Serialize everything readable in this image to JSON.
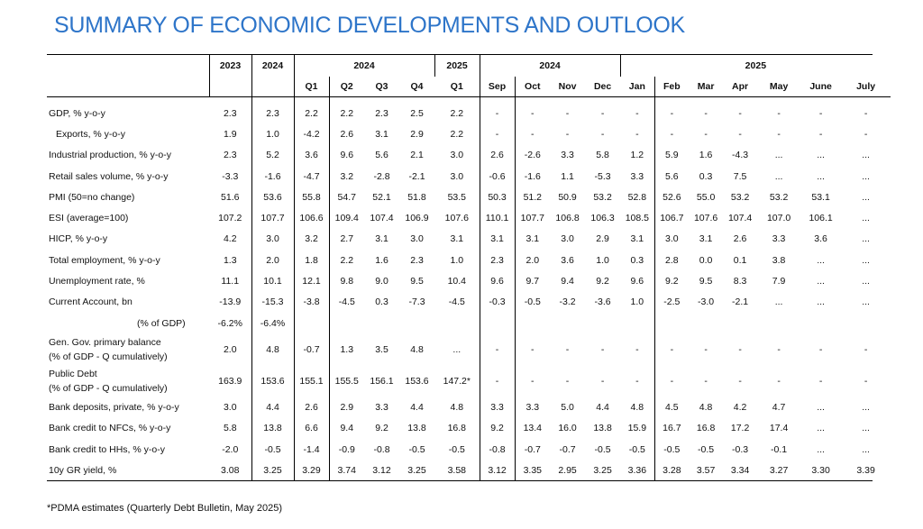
{
  "title": "SUMMARY OF ECONOMIC DEVELOPMENTS AND OUTLOOK",
  "header": {
    "year_2023": "2023",
    "year_2024": "2024",
    "group_2024_quarters": "2024",
    "group_2025_quarter": "2025",
    "group_2024_months": "2024",
    "group_2025_months": "2025",
    "subcols": [
      "Q1",
      "Q2",
      "Q3",
      "Q4",
      "Q1",
      "Sep",
      "Oct",
      "Nov",
      "Dec",
      "Jan",
      "Feb",
      "Mar",
      "Apr",
      "May",
      "June",
      "July"
    ]
  },
  "rows": [
    {
      "label": "GDP, % y-o-y",
      "values": [
        "2.3",
        "2.3",
        "2.2",
        "2.2",
        "2.3",
        "2.5",
        "2.2",
        "-",
        "-",
        "-",
        "-",
        "-",
        "-",
        "-",
        "-",
        "-",
        "-",
        "-"
      ]
    },
    {
      "label": "Exports, % y-o-y",
      "indent": true,
      "values": [
        "1.9",
        "1.0",
        "-4.2",
        "2.6",
        "3.1",
        "2.9",
        "2.2",
        "-",
        "-",
        "-",
        "-",
        "-",
        "-",
        "-",
        "-",
        "-",
        "-",
        "-"
      ]
    },
    {
      "label": "Industrial production, % y-o-y",
      "values": [
        "2.3",
        "5.2",
        "3.6",
        "9.6",
        "5.6",
        "2.1",
        "3.0",
        "2.6",
        "-2.6",
        "3.3",
        "5.8",
        "1.2",
        "5.9",
        "1.6",
        "-4.3",
        "...",
        "...",
        "..."
      ]
    },
    {
      "label": "Retail sales volume, % y-o-y",
      "values": [
        "-3.3",
        "-1.6",
        "-4.7",
        "3.2",
        "-2.8",
        "-2.1",
        "3.0",
        "-0.6",
        "-1.6",
        "1.1",
        "-5.3",
        "3.3",
        "5.6",
        "0.3",
        "7.5",
        "...",
        "...",
        "..."
      ]
    },
    {
      "label": "PMI (50=no change)",
      "values": [
        "51.6",
        "53.6",
        "55.8",
        "54.7",
        "52.1",
        "51.8",
        "53.5",
        "50.3",
        "51.2",
        "50.9",
        "53.2",
        "52.8",
        "52.6",
        "55.0",
        "53.2",
        "53.2",
        "53.1",
        "..."
      ]
    },
    {
      "label": "ESI (average=100)",
      "values": [
        "107.2",
        "107.7",
        "106.6",
        "109.4",
        "107.4",
        "106.9",
        "107.6",
        "110.1",
        "107.7",
        "106.8",
        "106.3",
        "108.5",
        "106.7",
        "107.6",
        "107.4",
        "107.0",
        "106.1",
        "..."
      ]
    },
    {
      "label": "HICP, % y-o-y",
      "values": [
        "4.2",
        "3.0",
        "3.2",
        "2.7",
        "3.1",
        "3.0",
        "3.1",
        "3.1",
        "3.1",
        "3.0",
        "2.9",
        "3.1",
        "3.0",
        "3.1",
        "2.6",
        "3.3",
        "3.6",
        "..."
      ]
    },
    {
      "label": "Total employment, % y-o-y",
      "values": [
        "1.3",
        "2.0",
        "1.8",
        "2.2",
        "1.6",
        "2.3",
        "1.0",
        "2.3",
        "2.0",
        "3.6",
        "1.0",
        "0.3",
        "2.8",
        "0.0",
        "0.1",
        "3.8",
        "...",
        "..."
      ]
    },
    {
      "label": "Unemployment rate, %",
      "values": [
        "11.1",
        "10.1",
        "12.1",
        "9.8",
        "9.0",
        "9.5",
        "10.4",
        "9.6",
        "9.7",
        "9.4",
        "9.2",
        "9.6",
        "9.2",
        "9.5",
        "8.3",
        "7.9",
        "...",
        "..."
      ]
    },
    {
      "label": "Current Account, bn",
      "values": [
        "-13.9",
        "-15.3",
        "-3.8",
        "-4.5",
        "0.3",
        "-7.3",
        "-4.5",
        "-0.3",
        "-0.5",
        "-3.2",
        "-3.6",
        "1.0",
        "-2.5",
        "-3.0",
        "-2.1",
        "...",
        "...",
        "..."
      ]
    },
    {
      "label": "(% of GDP)",
      "pct": true,
      "values": [
        "-6.2%",
        "-6.4%",
        "",
        "",
        "",
        "",
        "",
        "",
        "",
        "",
        "",
        "",
        "",
        "",
        "",
        "",
        "",
        ""
      ]
    },
    {
      "label": "Gen. Gov. primary balance",
      "label2": "(% of GDP - Q cumulatively)",
      "values": [
        "2.0",
        "4.8",
        "-0.7",
        "1.3",
        "3.5",
        "4.8",
        "...",
        "-",
        "-",
        "-",
        "-",
        "-",
        "-",
        "-",
        "-",
        "-",
        "-",
        "-"
      ]
    },
    {
      "label": "Public Debt",
      "label2": "(% of GDP - Q cumulatively)",
      "values": [
        "163.9",
        "153.6",
        "155.1",
        "155.5",
        "156.1",
        "153.6",
        "147.2*",
        "-",
        "-",
        "-",
        "-",
        "-",
        "-",
        "-",
        "-",
        "-",
        "-",
        "-"
      ]
    },
    {
      "label": "Bank deposits, private, % y-o-y",
      "values": [
        "3.0",
        "4.4",
        "2.6",
        "2.9",
        "3.3",
        "4.4",
        "4.8",
        "3.3",
        "3.3",
        "5.0",
        "4.4",
        "4.8",
        "4.5",
        "4.8",
        "4.2",
        "4.7",
        "...",
        "..."
      ]
    },
    {
      "label": "Bank credit to NFCs, % y-o-y",
      "values": [
        "5.8",
        "13.8",
        "6.6",
        "9.4",
        "9.2",
        "13.8",
        "16.8",
        "9.2",
        "13.4",
        "16.0",
        "13.8",
        "15.9",
        "16.7",
        "16.8",
        "17.2",
        "17.4",
        "...",
        "..."
      ]
    },
    {
      "label": "Bank credit to HHs, % y-o-y",
      "values": [
        "-2.0",
        "-0.5",
        "-1.4",
        "-0.9",
        "-0.8",
        "-0.5",
        "-0.5",
        "-0.8",
        "-0.7",
        "-0.7",
        "-0.5",
        "-0.5",
        "-0.5",
        "-0.5",
        "-0.3",
        "-0.1",
        "...",
        "..."
      ]
    },
    {
      "label": "10y GR yield, %",
      "values": [
        "3.08",
        "3.25",
        "3.29",
        "3.74",
        "3.12",
        "3.25",
        "3.58",
        "3.12",
        "3.35",
        "2.95",
        "3.25",
        "3.36",
        "3.28",
        "3.57",
        "3.34",
        "3.27",
        "3.30",
        "3.39"
      ]
    }
  ],
  "footnote": "*PDMA estimates (Quarterly Debt Bulletin, May 2025)"
}
